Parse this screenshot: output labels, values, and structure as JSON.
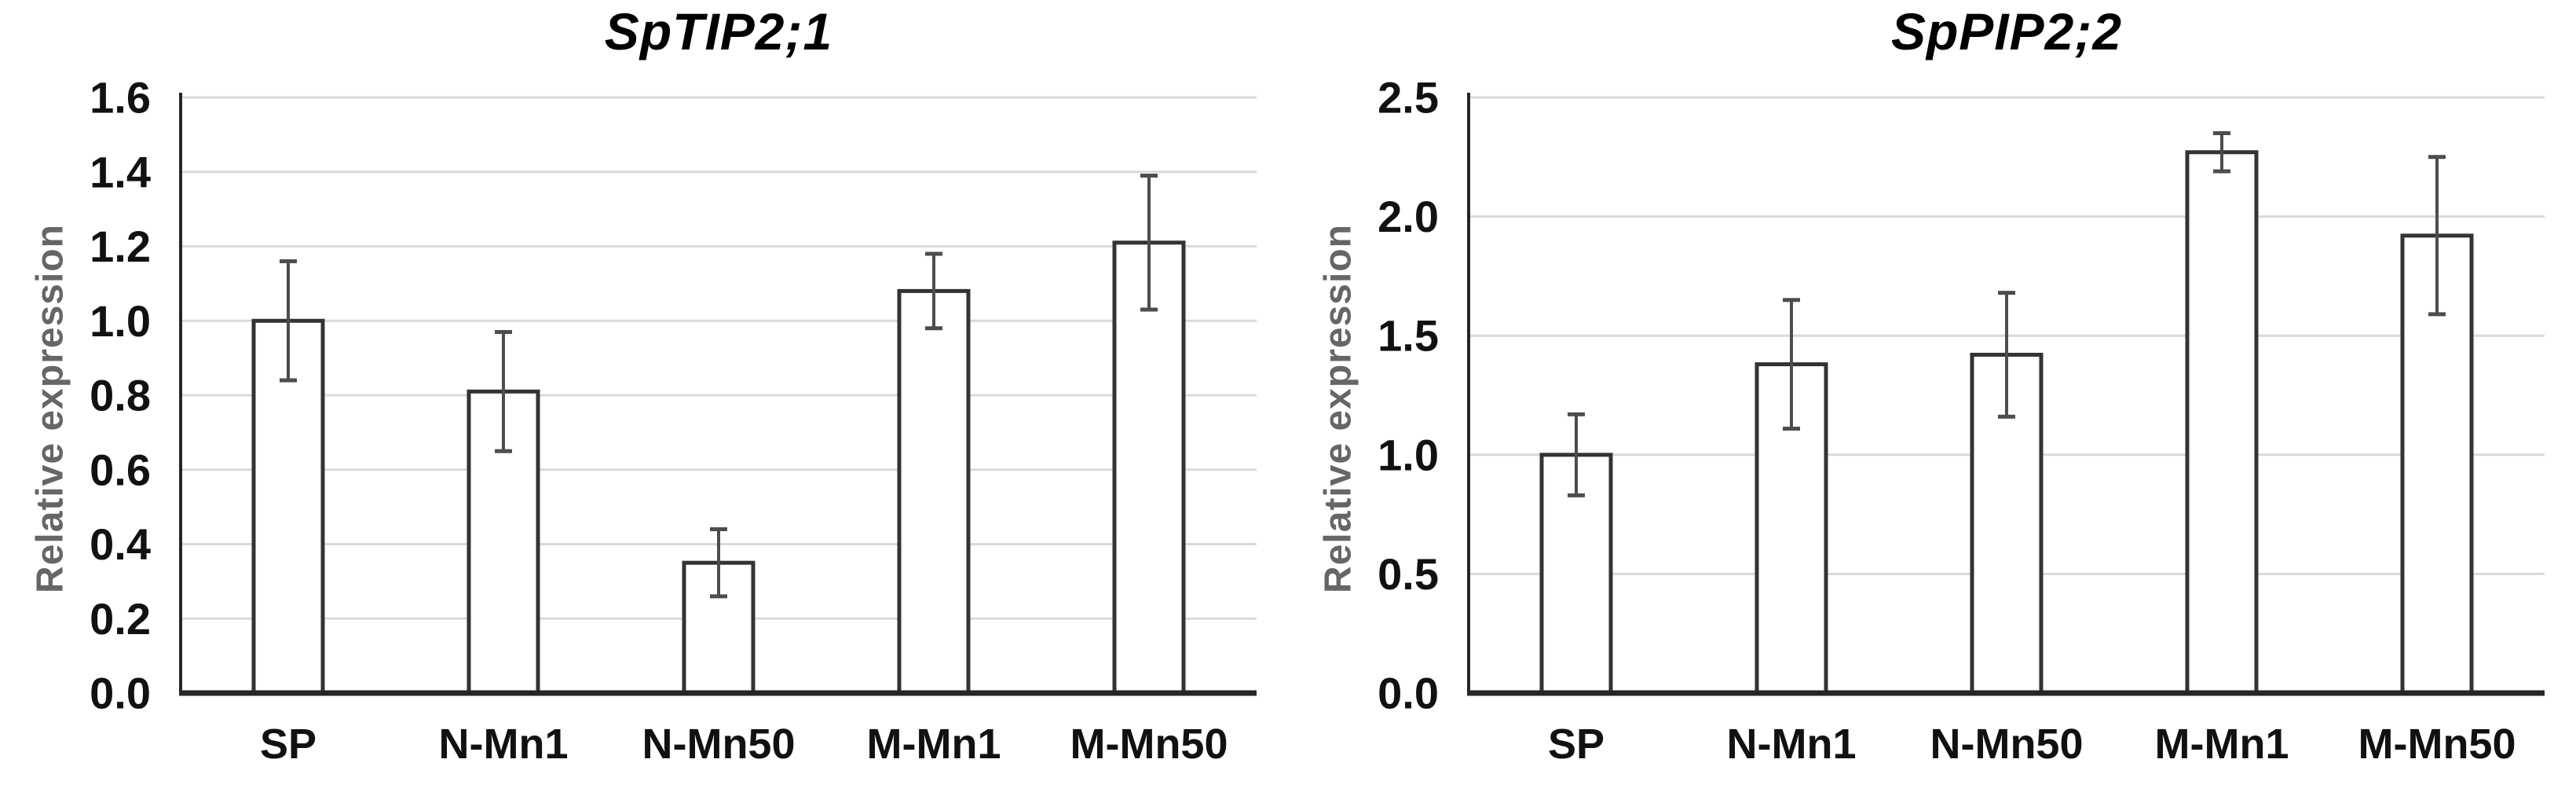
{
  "figure": {
    "background": "#ffffff",
    "type": "two-panel bar chart figure"
  },
  "colors": {
    "bar_fill": "#ffffff",
    "bar_stroke": "#333333",
    "gridline": "#d9d9d9",
    "axis": "#262626",
    "error_bar": "#4d4d4d",
    "tick_label": "#111111",
    "title": "#000000",
    "ylabel": "#666666"
  },
  "chart_data": [
    {
      "type": "bar",
      "title": "SpTIP2;1",
      "ylabel": "Relative expression",
      "xlabel": "",
      "categories": [
        "SP",
        "N-Mn1",
        "N-Mn50",
        "M-Mn1",
        "M-Mn50"
      ],
      "values": [
        1.0,
        0.81,
        0.35,
        1.08,
        1.21
      ],
      "error_up": [
        0.16,
        0.16,
        0.09,
        0.1,
        0.18
      ],
      "error_down": [
        0.16,
        0.16,
        0.09,
        0.1,
        0.18
      ],
      "ylim": [
        0,
        1.6
      ],
      "ytick_step": 0.2,
      "ytick_labels": [
        "0.0",
        "0.2",
        "0.4",
        "0.6",
        "0.8",
        "1.0",
        "1.2",
        "1.4",
        "1.6"
      ],
      "grid": true,
      "legend": "none",
      "bar_style": "white fill, dark outline, error bars with caps"
    },
    {
      "type": "bar",
      "title": "SpPIP2;2",
      "ylabel": "Relative expression",
      "xlabel": "",
      "categories": [
        "SP",
        "N-Mn1",
        "N-Mn50",
        "M-Mn1",
        "M-Mn50"
      ],
      "values": [
        1.0,
        1.38,
        1.42,
        2.27,
        1.92
      ],
      "error_up": [
        0.17,
        0.27,
        0.26,
        0.08,
        0.33
      ],
      "error_down": [
        0.17,
        0.27,
        0.26,
        0.08,
        0.33
      ],
      "ylim": [
        0,
        2.5
      ],
      "ytick_step": 0.5,
      "ytick_labels": [
        "0.0",
        "0.5",
        "1.0",
        "1.5",
        "2.0",
        "2.5"
      ],
      "grid": true,
      "legend": "none",
      "bar_style": "white fill, dark outline, error bars with caps"
    }
  ]
}
